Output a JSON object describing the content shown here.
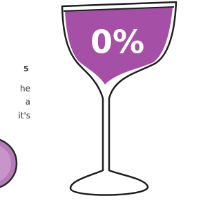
{
  "glass": {
    "label": "0%"
  },
  "side_text": {
    "number": "5",
    "lines": [
      "he",
      "a",
      "it's"
    ]
  }
}
